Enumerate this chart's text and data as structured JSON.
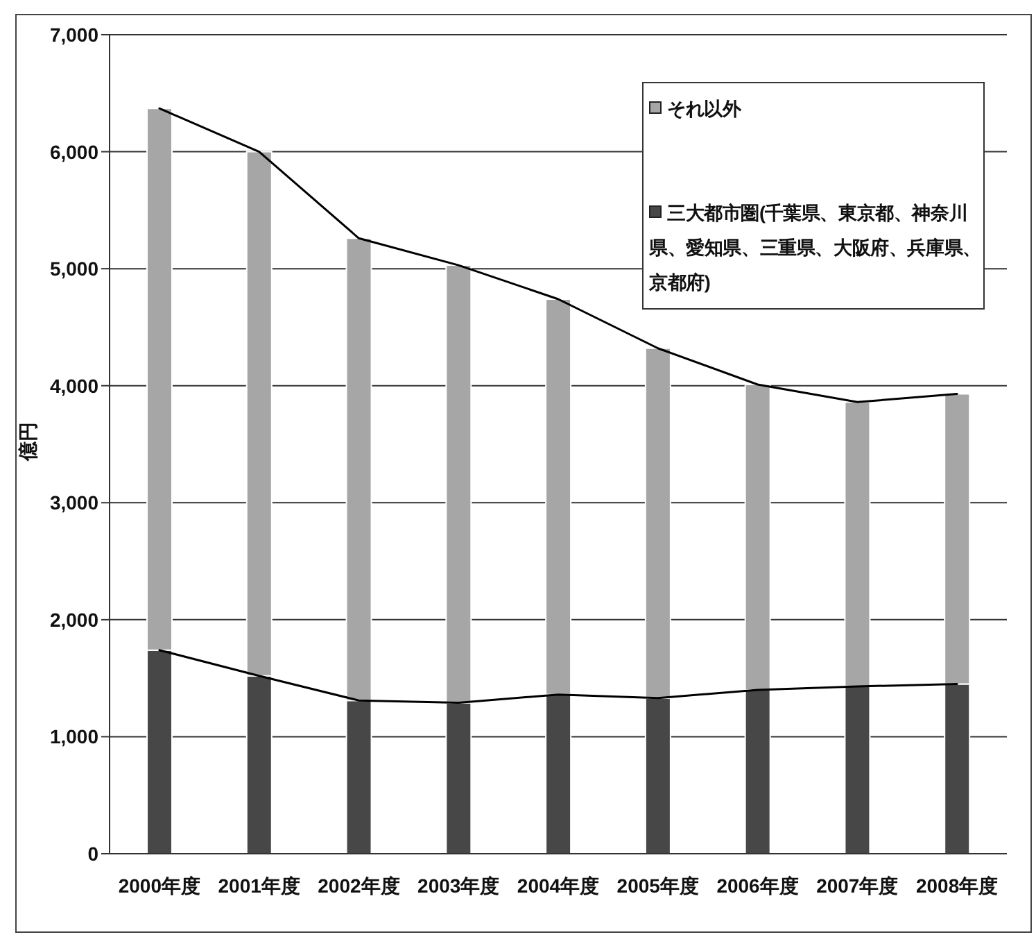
{
  "chart_data": {
    "type": "bar",
    "ylabel": "億円",
    "categories": [
      "2000年度",
      "2001年度",
      "2002年度",
      "2003年度",
      "2004年度",
      "2005年度",
      "2006年度",
      "2007年度",
      "2008年度"
    ],
    "series": [
      {
        "name": "三大都市圏(千葉県、東京都、神奈川県、愛知県、三重県、大阪府、兵庫県、京都府)",
        "color": "#474747",
        "values": [
          1740,
          1520,
          1310,
          1290,
          1360,
          1330,
          1400,
          1430,
          1450
        ]
      },
      {
        "name": "それ以外",
        "color": "#a6a6a6",
        "values": [
          4630,
          4480,
          3950,
          3740,
          3380,
          2990,
          2610,
          2430,
          2480
        ]
      },
      {
        "type": "line",
        "color": "#000000",
        "values": [
          1740,
          1520,
          1310,
          1290,
          1360,
          1330,
          1400,
          1430,
          1450
        ]
      },
      {
        "type": "line",
        "color": "#000000",
        "values": [
          6370,
          6000,
          5260,
          5030,
          4740,
          4320,
          4010,
          3860,
          3930
        ]
      }
    ],
    "stacked": true,
    "ylim": [
      0,
      7000
    ],
    "yticks": [
      0,
      {
        "value": 1000,
        "label": "1,000"
      },
      {
        "value": 2000,
        "label": "2,000"
      },
      {
        "value": 3000,
        "label": "3,000"
      },
      {
        "value": 4000,
        "label": "4,000"
      },
      {
        "value": 5000,
        "label": "5,000"
      },
      {
        "value": 6000,
        "label": "6,000"
      },
      {
        "value": 7000,
        "label": "7,000"
      }
    ],
    "grid": "y",
    "legend": "top right"
  }
}
